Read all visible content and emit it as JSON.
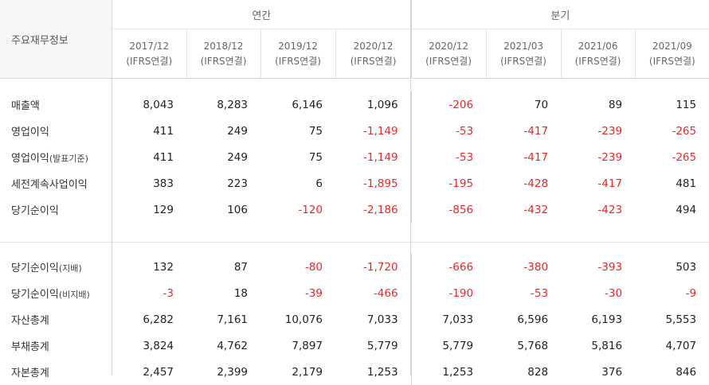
{
  "table": {
    "corner_label": "주요재무정보",
    "groups": {
      "annual": "연간",
      "quarterly": "분기"
    },
    "columns": [
      {
        "period": "2017/12",
        "basis": "(IFRS연결)"
      },
      {
        "period": "2018/12",
        "basis": "(IFRS연결)"
      },
      {
        "period": "2019/12",
        "basis": "(IFRS연결)"
      },
      {
        "period": "2020/12",
        "basis": "(IFRS연결)"
      },
      {
        "period": "2020/12",
        "basis": "(IFRS연결)"
      },
      {
        "period": "2021/03",
        "basis": "(IFRS연결)"
      },
      {
        "period": "2021/06",
        "basis": "(IFRS연결)"
      },
      {
        "period": "2021/09",
        "basis": "(IFRS연결)"
      }
    ],
    "rows": [
      {
        "label": "매출액",
        "sub": "",
        "values": [
          "8,043",
          "8,283",
          "6,146",
          "1,096",
          "-206",
          "70",
          "89",
          "115"
        ]
      },
      {
        "label": "영업이익",
        "sub": "",
        "values": [
          "411",
          "249",
          "75",
          "-1,149",
          "-53",
          "-417",
          "-239",
          "-265"
        ]
      },
      {
        "label": "영업이익",
        "sub": "(발표기준)",
        "values": [
          "411",
          "249",
          "75",
          "-1,149",
          "-53",
          "-417",
          "-239",
          "-265"
        ]
      },
      {
        "label": "세전계속사업이익",
        "sub": "",
        "values": [
          "383",
          "223",
          "6",
          "-1,895",
          "-195",
          "-428",
          "-417",
          "481"
        ]
      },
      {
        "label": "당기순이익",
        "sub": "",
        "values": [
          "129",
          "106",
          "-120",
          "-2,186",
          "-856",
          "-432",
          "-423",
          "494"
        ]
      },
      {
        "label": "당기순이익",
        "sub": "(지배)",
        "values": [
          "132",
          "87",
          "-80",
          "-1,720",
          "-666",
          "-380",
          "-393",
          "503"
        ]
      },
      {
        "label": "당기순이익",
        "sub": "(비지배)",
        "values": [
          "-3",
          "18",
          "-39",
          "-466",
          "-190",
          "-53",
          "-30",
          "-9"
        ]
      },
      {
        "label": "자산총계",
        "sub": "",
        "values": [
          "6,282",
          "7,161",
          "10,076",
          "7,033",
          "7,033",
          "6,596",
          "6,193",
          "5,553"
        ]
      },
      {
        "label": "부채총계",
        "sub": "",
        "values": [
          "3,824",
          "4,762",
          "7,897",
          "5,779",
          "5,779",
          "5,768",
          "5,816",
          "4,707"
        ]
      },
      {
        "label": "자본총계",
        "sub": "",
        "values": [
          "2,457",
          "2,399",
          "2,179",
          "1,253",
          "1,253",
          "828",
          "376",
          "846"
        ]
      }
    ]
  },
  "colors": {
    "negative": "#e8272a",
    "text": "#222222",
    "header_bg": "#f7f7f7"
  }
}
